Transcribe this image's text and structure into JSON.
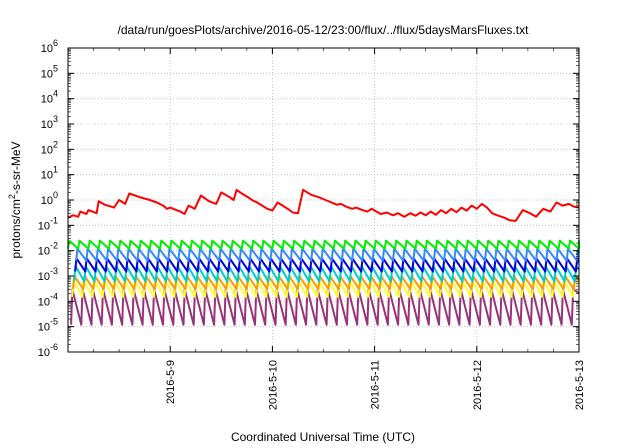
{
  "chart_data": {
    "type": "line",
    "title": "/data/run/goesPlots/archive/2016-05-12/23:00/flux/../flux/5daysMarsFluxes.txt",
    "xlabel": "Coordinated Universal Time (UTC)",
    "ylabel_parts": {
      "main": "protons/cm",
      "sup": "2",
      "rest": "-s-sr-MeV"
    },
    "y_scale": "log",
    "ylim_exponents": [
      -6,
      6
    ],
    "y_tick_exponents": [
      -6,
      -5,
      -4,
      -3,
      -2,
      -1,
      0,
      1,
      2,
      3,
      4,
      5,
      6
    ],
    "y_tick_base": "10",
    "xlim_days": [
      8.0,
      13.0
    ],
    "x_ticks": [
      {
        "day": 9,
        "label": "2016-5-9"
      },
      {
        "day": 10,
        "label": "2016-5-10"
      },
      {
        "day": 11,
        "label": "2016-5-11"
      },
      {
        "day": 12,
        "label": "2016-5-12"
      },
      {
        "day": 13,
        "label": "2016-5-13"
      }
    ],
    "grid": true,
    "series": [
      {
        "color": "#ff0000",
        "points": [
          [
            8.0,
            0.2
          ],
          [
            8.05,
            0.25
          ],
          [
            8.1,
            0.22
          ],
          [
            8.12,
            0.35
          ],
          [
            8.18,
            0.28
          ],
          [
            8.2,
            0.4
          ],
          [
            8.28,
            0.3
          ],
          [
            8.3,
            0.9
          ],
          [
            8.36,
            0.65
          ],
          [
            8.45,
            0.5
          ],
          [
            8.5,
            1.0
          ],
          [
            8.56,
            0.7
          ],
          [
            8.6,
            1.8
          ],
          [
            8.7,
            1.3
          ],
          [
            8.8,
            1.0
          ],
          [
            8.87,
            0.8
          ],
          [
            8.93,
            0.6
          ],
          [
            8.97,
            0.45
          ],
          [
            9.0,
            0.5
          ],
          [
            9.06,
            0.4
          ],
          [
            9.1,
            0.35
          ],
          [
            9.14,
            0.28
          ],
          [
            9.18,
            0.6
          ],
          [
            9.24,
            0.45
          ],
          [
            9.3,
            1.5
          ],
          [
            9.38,
            0.9
          ],
          [
            9.45,
            0.7
          ],
          [
            9.5,
            2.0
          ],
          [
            9.58,
            1.3
          ],
          [
            9.62,
            1.0
          ],
          [
            9.65,
            2.5
          ],
          [
            9.72,
            1.6
          ],
          [
            9.76,
            1.3
          ],
          [
            9.8,
            1.0
          ],
          [
            9.85,
            0.8
          ],
          [
            9.9,
            0.6
          ],
          [
            9.95,
            0.45
          ],
          [
            10.0,
            0.38
          ],
          [
            10.05,
            0.8
          ],
          [
            10.1,
            0.6
          ],
          [
            10.15,
            0.45
          ],
          [
            10.2,
            0.32
          ],
          [
            10.25,
            0.3
          ],
          [
            10.3,
            2.5
          ],
          [
            10.38,
            1.6
          ],
          [
            10.45,
            1.3
          ],
          [
            10.52,
            1.0
          ],
          [
            10.58,
            0.8
          ],
          [
            10.63,
            0.65
          ],
          [
            10.67,
            0.7
          ],
          [
            10.72,
            0.55
          ],
          [
            10.78,
            0.45
          ],
          [
            10.82,
            0.5
          ],
          [
            10.88,
            0.4
          ],
          [
            10.93,
            0.35
          ],
          [
            10.97,
            0.45
          ],
          [
            11.02,
            0.35
          ],
          [
            11.06,
            0.28
          ],
          [
            11.12,
            0.32
          ],
          [
            11.18,
            0.25
          ],
          [
            11.23,
            0.3
          ],
          [
            11.29,
            0.22
          ],
          [
            11.35,
            0.3
          ],
          [
            11.4,
            0.24
          ],
          [
            11.45,
            0.32
          ],
          [
            11.5,
            0.25
          ],
          [
            11.55,
            0.35
          ],
          [
            11.6,
            0.26
          ],
          [
            11.65,
            0.4
          ],
          [
            11.7,
            0.3
          ],
          [
            11.75,
            0.45
          ],
          [
            11.8,
            0.33
          ],
          [
            11.85,
            0.5
          ],
          [
            11.9,
            0.38
          ],
          [
            11.95,
            0.6
          ],
          [
            12.0,
            0.45
          ],
          [
            12.05,
            0.7
          ],
          [
            12.1,
            0.5
          ],
          [
            12.15,
            0.3
          ],
          [
            12.2,
            0.25
          ],
          [
            12.27,
            0.2
          ],
          [
            12.32,
            0.16
          ],
          [
            12.38,
            0.15
          ],
          [
            12.45,
            0.4
          ],
          [
            12.52,
            0.3
          ],
          [
            12.58,
            0.22
          ],
          [
            12.65,
            0.45
          ],
          [
            12.72,
            0.35
          ],
          [
            12.78,
            0.8
          ],
          [
            12.84,
            0.6
          ],
          [
            12.9,
            0.7
          ],
          [
            12.95,
            0.55
          ],
          [
            13.0,
            0.5
          ]
        ]
      },
      {
        "color": "#00ee00",
        "sawtooth": {
          "peak": 0.025,
          "trough": 0.012,
          "period": 0.1,
          "phase": 0.0
        }
      },
      {
        "color": "#3388ff",
        "sawtooth": {
          "peak": 0.012,
          "trough": 0.004,
          "period": 0.1,
          "phase": 0.02
        }
      },
      {
        "color": "#0000dd",
        "sawtooth": {
          "peak": 0.005,
          "trough": 0.0015,
          "period": 0.1,
          "phase": 0.03
        }
      },
      {
        "color": "#00cccc",
        "sawtooth": {
          "peak": 0.0025,
          "trough": 0.0006,
          "period": 0.1,
          "phase": 0.04
        }
      },
      {
        "color": "#ff9900",
        "sawtooth": {
          "peak": 0.001,
          "trough": 0.0003,
          "period": 0.1,
          "phase": 0.05
        }
      },
      {
        "color": "#ffff33",
        "sawtooth": {
          "peak": 0.0007,
          "trough": 0.00015,
          "period": 0.1,
          "phase": 0.06
        }
      },
      {
        "color": "#993377",
        "sawtooth": {
          "peak": 0.0003,
          "trough": 1.2e-05,
          "period": 0.1,
          "phase": 0.07
        }
      }
    ]
  }
}
